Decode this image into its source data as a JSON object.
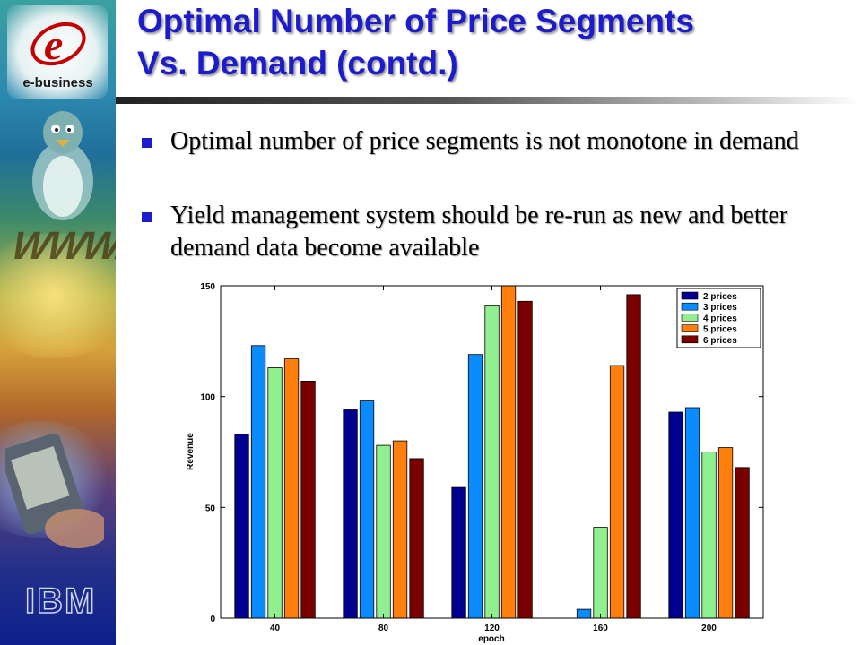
{
  "slide": {
    "title_line1": "Optimal Number of Price Segments",
    "title_line2": "Vs. Demand (contd.)",
    "bullets": [
      "Optimal number of price segments is not monotone in demand",
      "Yield management system should be re-run as new and better demand data become available"
    ]
  },
  "sidebar": {
    "brand_text": "e-business",
    "logo_text": "IBM",
    "www_text": "WWW."
  },
  "colors": {
    "title": "#1c1ccc",
    "bullet": "#1c1ccc"
  },
  "chart_data": {
    "type": "bar",
    "categories": [
      "40",
      "80",
      "120",
      "160",
      "200"
    ],
    "xlabel": "epoch",
    "ylabel": "Revenue",
    "ylim": [
      0,
      150
    ],
    "yticks": [
      0,
      50,
      100,
      150
    ],
    "legend_position": "top-right",
    "grid": false,
    "series": [
      {
        "name": "2 prices",
        "color": "#000090",
        "values": [
          83,
          94,
          59,
          0,
          93
        ]
      },
      {
        "name": "3 prices",
        "color": "#0a8cff",
        "values": [
          123,
          98,
          119,
          4,
          95
        ]
      },
      {
        "name": "4 prices",
        "color": "#90f090",
        "values": [
          113,
          78,
          141,
          41,
          75
        ]
      },
      {
        "name": "5 prices",
        "color": "#ff7f0e",
        "values": [
          117,
          80,
          150,
          114,
          77
        ]
      },
      {
        "name": "6 prices",
        "color": "#7a0000",
        "values": [
          107,
          72,
          143,
          146,
          68
        ]
      }
    ]
  }
}
